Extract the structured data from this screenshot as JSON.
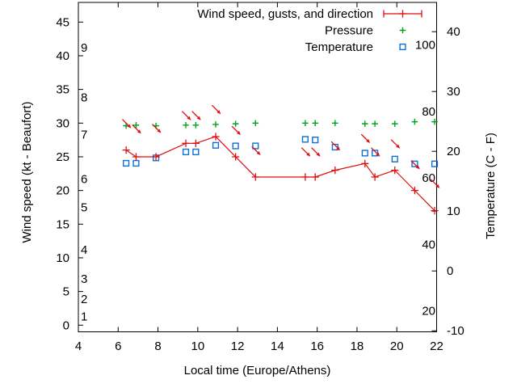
{
  "page": {
    "background": "#ffffff",
    "frame_color": "#000000"
  },
  "chart_data": {
    "type": "line",
    "title": "",
    "legend": {
      "position": "top-right-inside",
      "entries": [
        {
          "label": "Wind speed, gusts, and direction",
          "sample": "errorbar-plus",
          "color": "#e10e0e"
        },
        {
          "label": "Pressure",
          "sample": "plus",
          "color": "#00a41c"
        },
        {
          "label": "Temperature",
          "sample": "open-square",
          "color": "#0d6fd8"
        }
      ]
    },
    "axes": {
      "x": {
        "label": "Local time (Europe/Athens)",
        "range": [
          4,
          22
        ],
        "ticks": [
          4,
          6,
          8,
          10,
          12,
          14,
          16,
          18,
          20,
          22
        ]
      },
      "y_left": {
        "label": "Wind speed (kt - Beaufort)",
        "unit": "kt",
        "range_approx": [
          -1,
          48
        ],
        "ticks": [
          0,
          5,
          10,
          15,
          20,
          25,
          30,
          35,
          40,
          45
        ],
        "beaufort_inner_labels": [
          {
            "b": "1",
            "kt": 1.3
          },
          {
            "b": "2",
            "kt": 3.9
          },
          {
            "b": "3",
            "kt": 6.9
          },
          {
            "b": "4",
            "kt": 11.2
          },
          {
            "b": "5",
            "kt": 17.5
          },
          {
            "b": "6",
            "kt": 21.7
          },
          {
            "b": "7",
            "kt": 28.3
          },
          {
            "b": "8",
            "kt": 33.8
          },
          {
            "b": "9",
            "kt": 41.2
          }
        ]
      },
      "y_right": {
        "label": "Temperature (C - F)",
        "unit": "C",
        "range_approx": [
          -10.5,
          44.9
        ],
        "ticks_c": [
          -10,
          0,
          10,
          20,
          30,
          40
        ],
        "fahrenheit_inner_labels": [
          20,
          40,
          60,
          80,
          100
        ]
      }
    },
    "x_values_hours": [
      6.4,
      6.9,
      7.9,
      9.4,
      9.9,
      10.9,
      11.9,
      12.9,
      15.4,
      15.9,
      16.9,
      18.4,
      18.9,
      19.9,
      20.9,
      21.9
    ],
    "series": [
      {
        "name": "wind_speed_kt",
        "axis": "y_left",
        "style": "line-plus",
        "color": "#e10e0e",
        "values": [
          26,
          25,
          25,
          27,
          27,
          28,
          25,
          22,
          22,
          22,
          23,
          24,
          22,
          23,
          20,
          17
        ]
      },
      {
        "name": "wind_gust_kt_direction_arrows",
        "axis": "y_left",
        "style": "arrow-down-right",
        "color": "#e10e0e",
        "arrow_meaning": "all arrows point down-right (wind from NW)",
        "values": [
          30,
          29.2,
          29.3,
          31.2,
          31.2,
          32.1,
          29,
          26,
          25.8,
          25.8,
          26.7,
          27.8,
          25.8,
          27,
          23.9,
          21.1
        ]
      },
      {
        "name": "pressure",
        "axis": "y_left",
        "style": "plus",
        "color": "#00a41c",
        "note": "pressure numeric scale not shown; plotted level read in left-axis units",
        "values": [
          29.6,
          29.7,
          29.6,
          29.7,
          29.7,
          29.8,
          29.9,
          30,
          30,
          30,
          30,
          29.9,
          29.9,
          29.9,
          30.2,
          30.2
        ]
      },
      {
        "name": "temperature_c",
        "axis": "y_right",
        "style": "open-square",
        "color": "#0d6fd8",
        "values": [
          18,
          18,
          18.9,
          19.9,
          19.9,
          21,
          20.9,
          20.9,
          22,
          21.9,
          20.7,
          19.7,
          19.7,
          18.7,
          17.9,
          17.9
        ]
      }
    ]
  }
}
